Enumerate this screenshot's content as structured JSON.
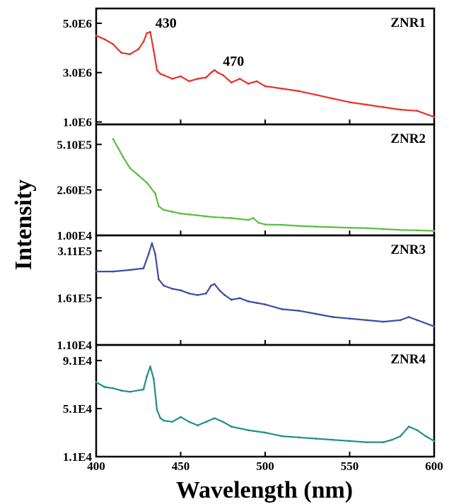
{
  "chart_data": {
    "type": "line",
    "xlabel": "Wavelength (nm)",
    "ylabel": "Intensity",
    "xlim": [
      400,
      600
    ],
    "x_ticks": [
      "400",
      "450",
      "500",
      "550",
      "600"
    ],
    "x_tick_values": [
      400,
      450,
      500,
      550,
      600
    ],
    "panels": [
      {
        "name": "ZNR1",
        "color": "#e8322b",
        "ylim": [
          900000,
          5600000
        ],
        "y_ticks": [
          "5.0E6",
          "3.0E6",
          "1.0E6"
        ],
        "y_tick_values": [
          5000000,
          3000000,
          1000000
        ],
        "annotations": [
          {
            "text": "430",
            "x": 430,
            "y": 4650000
          },
          {
            "text": "470",
            "x": 470,
            "y": 3100000
          }
        ],
        "x": [
          400,
          405,
          410,
          415,
          420,
          425,
          428,
          430,
          432,
          434,
          436,
          438,
          440,
          445,
          450,
          455,
          460,
          465,
          468,
          470,
          472,
          475,
          480,
          485,
          490,
          495,
          500,
          510,
          520,
          530,
          540,
          550,
          560,
          570,
          580,
          590,
          600
        ],
        "y": [
          4500000,
          4350000,
          4150000,
          3800000,
          3750000,
          3950000,
          4250000,
          4600000,
          4650000,
          3900000,
          3100000,
          2950000,
          2900000,
          2750000,
          2850000,
          2650000,
          2750000,
          2800000,
          3000000,
          3100000,
          3000000,
          2900000,
          2600000,
          2750000,
          2550000,
          2650000,
          2450000,
          2350000,
          2250000,
          2100000,
          1950000,
          1800000,
          1700000,
          1600000,
          1500000,
          1450000,
          1200000
        ]
      },
      {
        "name": "ZNR2",
        "color": "#5bbd3f",
        "ylim": [
          10000,
          620000
        ],
        "y_ticks": [
          "5.10E5",
          "2.60E5",
          "1.00E4"
        ],
        "y_tick_values": [
          510000,
          260000,
          10000
        ],
        "annotations": [],
        "x": [
          410,
          413,
          416,
          420,
          425,
          430,
          435,
          437,
          440,
          445,
          450,
          455,
          460,
          465,
          470,
          475,
          480,
          485,
          490,
          493,
          496,
          500,
          510,
          520,
          530,
          540,
          550,
          560,
          570,
          580,
          590,
          600
        ],
        "y": [
          540000,
          490000,
          440000,
          380000,
          340000,
          300000,
          240000,
          170000,
          150000,
          140000,
          130000,
          125000,
          120000,
          115000,
          110000,
          108000,
          105000,
          100000,
          95000,
          105000,
          80000,
          70000,
          68000,
          62000,
          58000,
          55000,
          52000,
          50000,
          45000,
          40000,
          38000,
          35000
        ]
      },
      {
        "name": "ZNR3",
        "color": "#3a4ea0",
        "ylim": [
          11000,
          360000
        ],
        "y_ticks": [
          "3.11E5",
          "1.61E5",
          "1.10E4"
        ],
        "y_tick_values": [
          311000,
          161000,
          11000
        ],
        "annotations": [],
        "x": [
          400,
          410,
          420,
          428,
          431,
          433,
          435,
          437,
          440,
          445,
          450,
          455,
          460,
          465,
          468,
          470,
          473,
          476,
          480,
          485,
          490,
          495,
          500,
          510,
          520,
          530,
          540,
          550,
          560,
          570,
          580,
          585,
          590,
          600
        ],
        "y": [
          245000,
          245000,
          250000,
          255000,
          300000,
          335000,
          300000,
          220000,
          200000,
          190000,
          185000,
          175000,
          170000,
          175000,
          200000,
          205000,
          185000,
          170000,
          155000,
          160000,
          150000,
          145000,
          140000,
          125000,
          120000,
          110000,
          100000,
          95000,
          90000,
          85000,
          90000,
          100000,
          90000,
          70000
        ]
      },
      {
        "name": "ZNR4",
        "color": "#1f8f87",
        "ylim": [
          11000,
          104000
        ],
        "y_ticks": [
          "9.1E4",
          "5.1E4",
          "1.1E4"
        ],
        "y_tick_values": [
          91000,
          51000,
          11000
        ],
        "annotations": [],
        "x": [
          400,
          405,
          410,
          415,
          420,
          428,
          430,
          432,
          434,
          436,
          438,
          440,
          445,
          450,
          455,
          460,
          465,
          470,
          475,
          480,
          490,
          500,
          510,
          520,
          530,
          540,
          550,
          560,
          570,
          575,
          580,
          585,
          590,
          595,
          600
        ],
        "y": [
          73000,
          69000,
          68000,
          66000,
          65000,
          67000,
          78000,
          86000,
          76000,
          50000,
          43000,
          41000,
          40000,
          44000,
          40000,
          37000,
          40000,
          43000,
          40000,
          36000,
          33000,
          31000,
          28000,
          27000,
          26000,
          25000,
          24000,
          23000,
          23000,
          25000,
          28000,
          36000,
          33000,
          28000,
          24000
        ]
      }
    ]
  }
}
